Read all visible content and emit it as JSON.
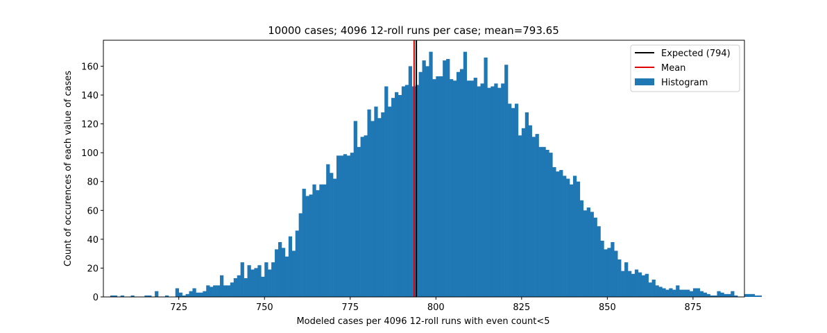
{
  "chart_data": {
    "type": "bar",
    "title": "10000 cases; 4096 12-roll runs per case; mean=793.65",
    "xlabel": "Modeled cases per 4096 12-roll runs with even count<5",
    "ylabel": "Count of occurences of each value of cases",
    "xlim": [
      703,
      890
    ],
    "ylim": [
      0,
      178
    ],
    "xticks": [
      725,
      750,
      775,
      800,
      825,
      850,
      875
    ],
    "yticks": [
      0,
      20,
      40,
      60,
      80,
      100,
      120,
      140,
      160
    ],
    "bin_start": 704,
    "bin_width": 1,
    "values": [
      0,
      1,
      1,
      0,
      1,
      0,
      0,
      1,
      0,
      0,
      0,
      1,
      1,
      0,
      4,
      0,
      0,
      1,
      0,
      0,
      6,
      3,
      1,
      2,
      4,
      6,
      3,
      3,
      4,
      8,
      7,
      8,
      8,
      15,
      8,
      8,
      10,
      13,
      15,
      24,
      13,
      22,
      19,
      20,
      22,
      14,
      24,
      19,
      24,
      33,
      38,
      34,
      28,
      42,
      32,
      46,
      58,
      75,
      70,
      71,
      78,
      74,
      78,
      78,
      92,
      86,
      82,
      98,
      98,
      99,
      98,
      100,
      122,
      104,
      111,
      112,
      130,
      122,
      132,
      124,
      128,
      146,
      132,
      138,
      142,
      140,
      146,
      147,
      160,
      146,
      147,
      156,
      164,
      160,
      170,
      151,
      153,
      153,
      164,
      165,
      151,
      150,
      156,
      158,
      170,
      150,
      150,
      152,
      146,
      148,
      166,
      145,
      146,
      148,
      145,
      148,
      161,
      134,
      131,
      134,
      112,
      117,
      128,
      119,
      111,
      113,
      104,
      104,
      102,
      100,
      90,
      87,
      88,
      84,
      82,
      78,
      84,
      80,
      67,
      60,
      62,
      59,
      55,
      49,
      39,
      33,
      34,
      38,
      32,
      26,
      18,
      24,
      18,
      16,
      19,
      17,
      15,
      16,
      10,
      12,
      8,
      7,
      6,
      5,
      6,
      5,
      8,
      5,
      5,
      5,
      4,
      6,
      6,
      4,
      3,
      2,
      1,
      1,
      4,
      3,
      2,
      2,
      4,
      1,
      0,
      0,
      2,
      2,
      2,
      1,
      1,
      0,
      0,
      0,
      0
    ],
    "lines": [
      {
        "name": "Expected (794)",
        "x": 794.3,
        "color": "#000000"
      },
      {
        "name": "Mean",
        "x": 793.65,
        "color": "#e00000"
      }
    ],
    "legend": {
      "position": "top-right",
      "entries": [
        {
          "label": "Expected (794)",
          "kind": "line",
          "color": "#000000"
        },
        {
          "label": "Mean",
          "kind": "line",
          "color": "#e00000"
        },
        {
          "label": "Histogram",
          "kind": "patch",
          "color": "#1f77b4"
        }
      ]
    },
    "bar_color": "#1f77b4",
    "grid": false
  }
}
